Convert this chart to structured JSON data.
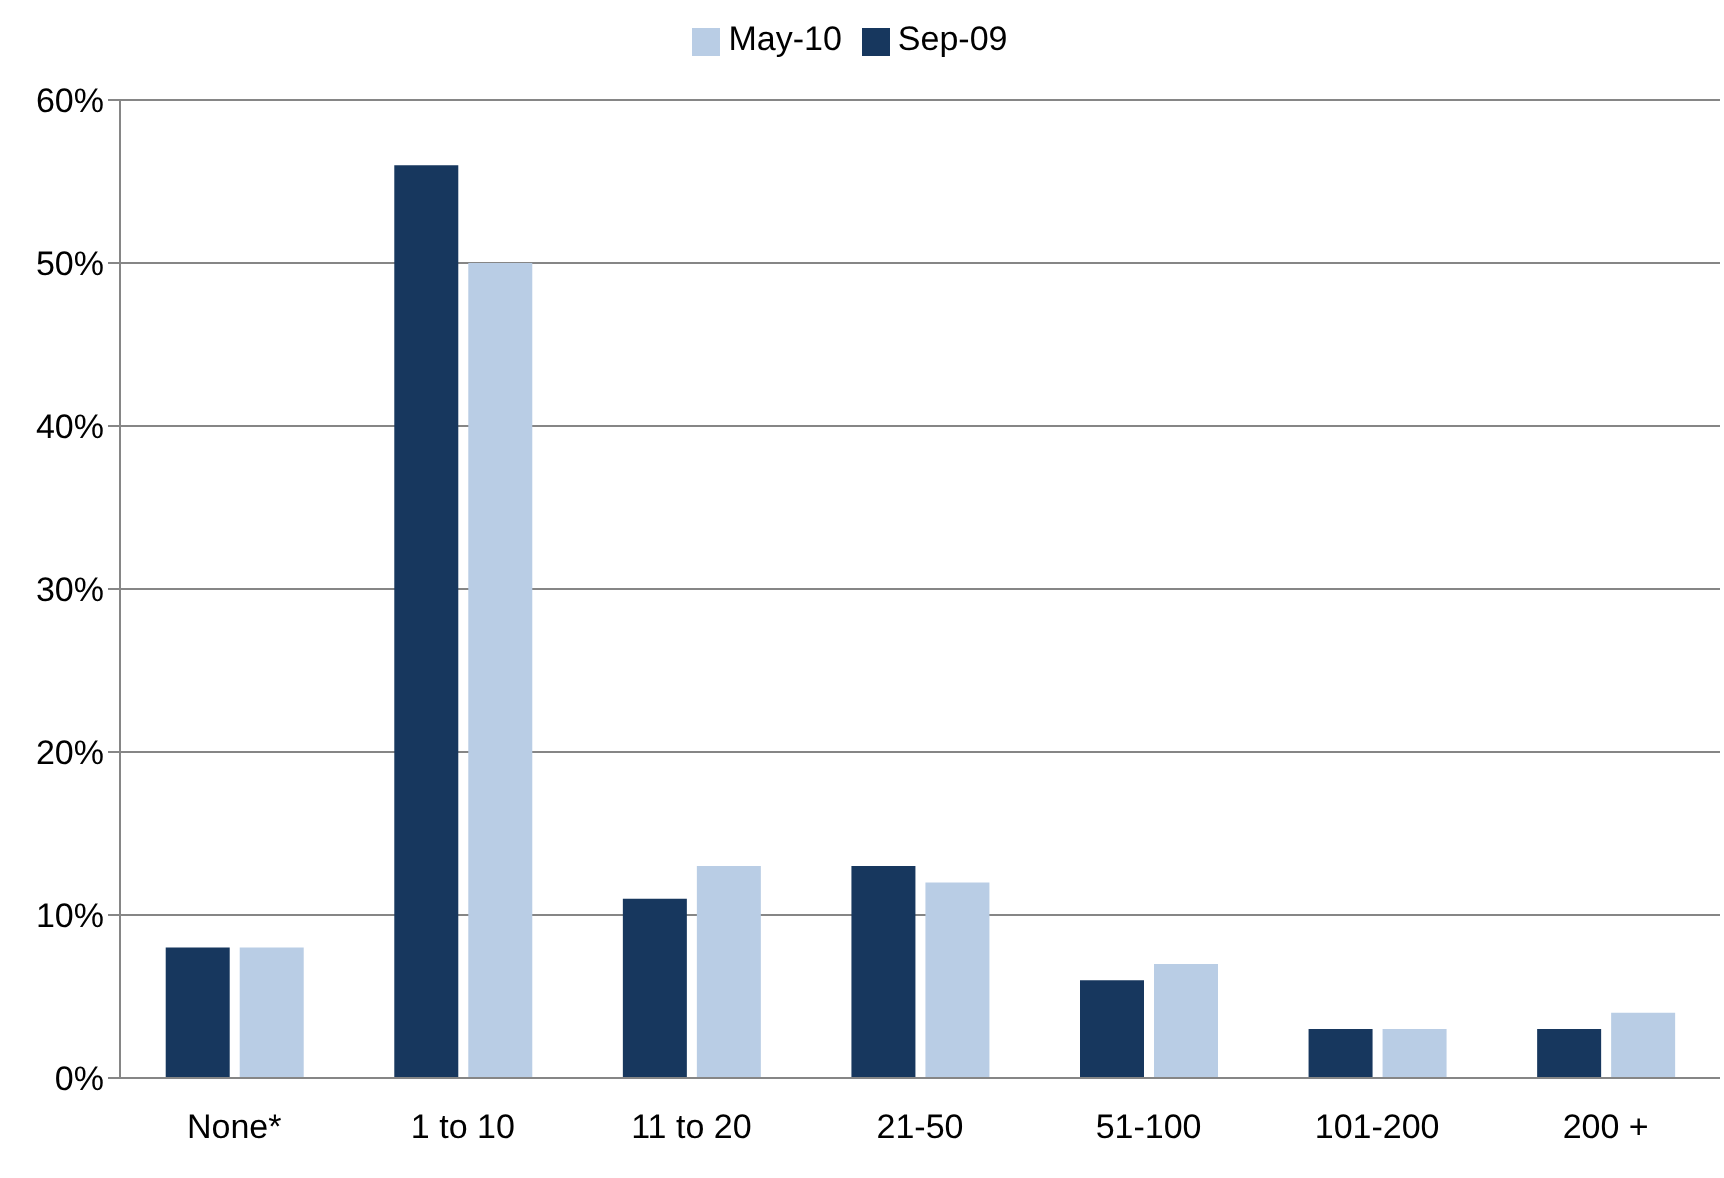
{
  "chart_data": {
    "type": "bar",
    "categories": [
      "None*",
      "1 to 10",
      "11 to 20",
      "21-50",
      "51-100",
      "101-200",
      "200 +"
    ],
    "series": [
      {
        "name": "Sep-09",
        "color": "#17375e",
        "values": [
          8,
          56,
          11,
          13,
          6,
          3,
          3
        ]
      },
      {
        "name": "May-10",
        "color": "#b9cde5",
        "values": [
          8,
          50,
          13,
          12,
          7,
          3,
          4
        ]
      }
    ],
    "ylim": [
      0,
      60
    ],
    "yticks": [
      {
        "value": 0,
        "label": "0%"
      },
      {
        "value": 10,
        "label": "10%"
      },
      {
        "value": 20,
        "label": "20%"
      },
      {
        "value": 30,
        "label": "30%"
      },
      {
        "value": 40,
        "label": "40%"
      },
      {
        "value": 50,
        "label": "50%"
      },
      {
        "value": 60,
        "label": "60%"
      }
    ],
    "grid": "y",
    "legend": "top"
  }
}
